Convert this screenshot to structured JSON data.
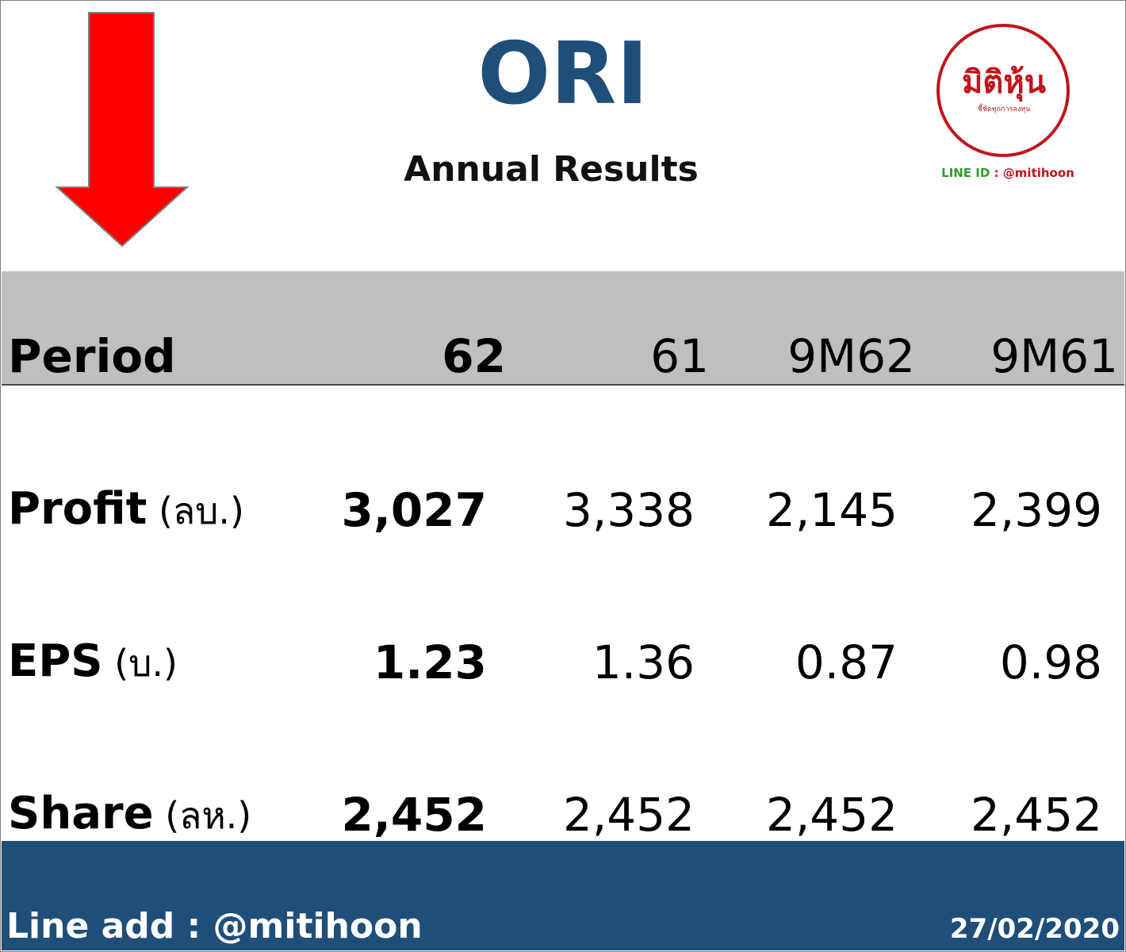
{
  "header": {
    "ticker": "ORI",
    "subtitle": "Annual Results"
  },
  "logo": {
    "wordmark": "มิติหุ้น",
    "tagline": "ชี้ชัดทุกการลงทุน",
    "line_label": "LINE ID",
    "line_sep": " : ",
    "line_handle": "@mitihoon"
  },
  "trend_indicator": {
    "direction": "down",
    "color": "#ff0000"
  },
  "table": {
    "header": {
      "label": "Period",
      "cols": [
        "62",
        "61",
        "9M62",
        "9M61"
      ]
    },
    "rows": [
      {
        "label": "Profit",
        "unit": " (ลบ.)",
        "values": [
          "3,027",
          "3,338",
          "2,145",
          "2,399"
        ]
      },
      {
        "label": "EPS",
        "unit": " (บ.)",
        "values": [
          "1.23",
          "1.36",
          "0.87",
          "0.98"
        ]
      },
      {
        "label": "Share",
        "unit": " (ลห.)",
        "values": [
          "2,452",
          "2,452",
          "2,452",
          "2,452"
        ]
      }
    ]
  },
  "footer": {
    "line_add": "Line add : @mitihoon",
    "date": "27/02/2020"
  },
  "colors": {
    "ticker": "#1f4e79",
    "header_band": "#bfbfbf",
    "footer": "#1f4e79",
    "logo_red": "#c0141c"
  }
}
